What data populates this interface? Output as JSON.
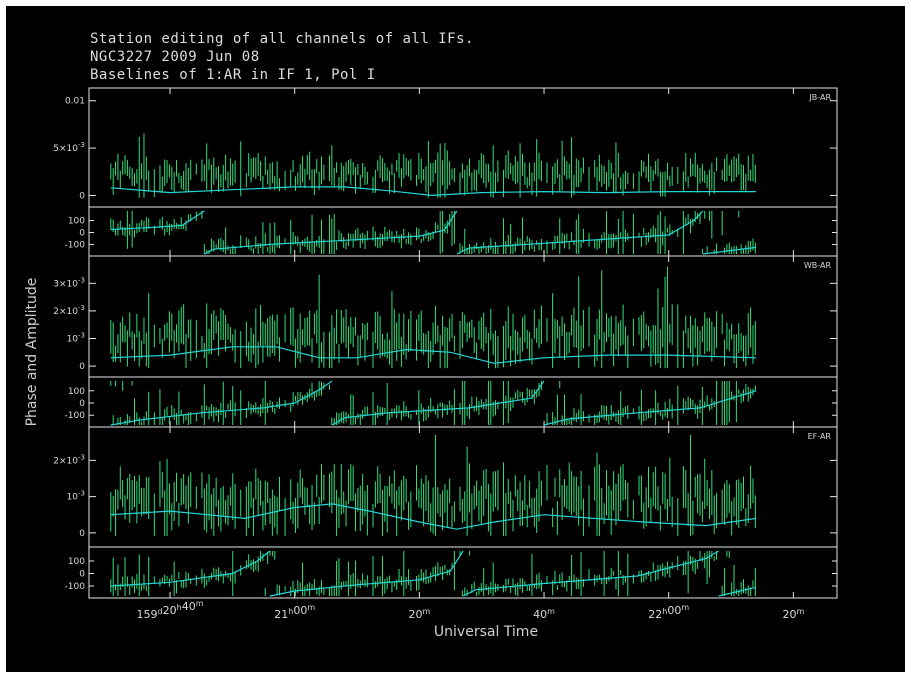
{
  "title_lines": [
    "Station editing of all channels of all IFs.",
    "NGC3227  2009 Jun 08",
    "Baselines of 1:AR in IF 1, Pol I"
  ],
  "colors": {
    "background": "#000000",
    "frame": "#e6e6e6",
    "data": "#2ee07a",
    "model": "#24d6d6",
    "text": "#d8d8d8"
  },
  "chart_data": {
    "type": "scatter",
    "xlabel": "Universal Time",
    "ylabel": "Phase and Amplitude",
    "x_unit": "minutes from 159d 20h 40m",
    "xlim": [
      -13,
      107
    ],
    "x_ticks": [
      {
        "t": 0,
        "label": "159d20h40m",
        "parts": [
          [
            "159",
            "d"
          ],
          [
            "20",
            "h"
          ],
          [
            "40",
            "m"
          ]
        ]
      },
      {
        "t": 20,
        "label": "21h00m",
        "parts": [
          [
            "21",
            "h"
          ],
          [
            "00",
            "m"
          ]
        ]
      },
      {
        "t": 40,
        "label": "20m",
        "parts": [
          [
            "20",
            "m"
          ]
        ]
      },
      {
        "t": 60,
        "label": "40m",
        "parts": [
          [
            "40",
            "m"
          ]
        ]
      },
      {
        "t": 80,
        "label": "22h00m",
        "parts": [
          [
            "22",
            "h"
          ],
          [
            "00",
            "m"
          ]
        ]
      },
      {
        "t": 100,
        "label": "20m",
        "parts": [
          [
            "20",
            "m"
          ]
        ]
      }
    ],
    "data_xrange": [
      -9.5,
      94
    ],
    "panels": [
      {
        "baseline": "JB-AR",
        "amp_ylim": [
          -0.0008,
          0.0105
        ],
        "amp_ticks": [
          {
            "v": 0,
            "label": "0"
          },
          {
            "v": 0.005,
            "label": "5×10-3",
            "mant": "5",
            "exp": "-3"
          },
          {
            "v": 0.01,
            "label": "0.01"
          }
        ],
        "amp_mean": 0.0022,
        "amp_spread": 0.0011,
        "amp_model": [
          [
            -9.5,
            0.0008
          ],
          [
            0,
            0.0003
          ],
          [
            10,
            0.0006
          ],
          [
            20,
            0.0009
          ],
          [
            28,
            0.0009
          ],
          [
            35,
            0.0005
          ],
          [
            42,
            0.0
          ],
          [
            50,
            0.0003
          ],
          [
            60,
            0.0004
          ],
          [
            70,
            0.0003
          ],
          [
            80,
            0.0004
          ],
          [
            94,
            0.0004
          ]
        ],
        "phase_ylim": [
          -180,
          180
        ],
        "phase_ticks": [
          100,
          0,
          -100
        ],
        "phase_model": [
          [
            -9.5,
            25
          ],
          [
            -2,
            45
          ],
          [
            2,
            60
          ],
          [
            4,
            130
          ],
          [
            5.5,
            180
          ],
          [
            null,
            null
          ],
          [
            5.5,
            -180
          ],
          [
            7,
            -140
          ],
          [
            16,
            -100
          ],
          [
            30,
            -60
          ],
          [
            40,
            -30
          ],
          [
            44,
            20
          ],
          [
            46,
            180
          ],
          [
            null,
            null
          ],
          [
            46,
            -180
          ],
          [
            48,
            -130
          ],
          [
            60,
            -90
          ],
          [
            80,
            -20
          ],
          [
            84,
            100
          ],
          [
            85.5,
            180
          ],
          [
            null,
            null
          ],
          [
            85.5,
            -180
          ],
          [
            94,
            -125
          ]
        ]
      },
      {
        "baseline": "WB-AR",
        "amp_ylim": [
          -0.00025,
          0.0037
        ],
        "amp_ticks": [
          {
            "v": 0,
            "label": "0"
          },
          {
            "v": 0.001,
            "label": "10-3",
            "mant": "",
            "exp": "-3"
          },
          {
            "v": 0.002,
            "label": "2×10-3",
            "mant": "2",
            "exp": "-3"
          },
          {
            "v": 0.003,
            "label": "3×10-3",
            "mant": "3",
            "exp": "-3"
          }
        ],
        "amp_mean": 0.001,
        "amp_spread": 0.00055,
        "amp_model": [
          [
            -9.5,
            0.0003
          ],
          [
            0,
            0.0004
          ],
          [
            10,
            0.0007
          ],
          [
            17,
            0.0007
          ],
          [
            24,
            0.0003
          ],
          [
            30,
            0.0003
          ],
          [
            38,
            0.0006
          ],
          [
            45,
            0.0005
          ],
          [
            52,
            0.0001
          ],
          [
            60,
            0.0003
          ],
          [
            70,
            0.0004
          ],
          [
            80,
            0.0004
          ],
          [
            94,
            0.0003
          ]
        ],
        "phase_ylim": [
          -180,
          180
        ],
        "phase_ticks": [
          100,
          0,
          -100
        ],
        "phase_model": [
          [
            -9.5,
            -180
          ],
          [
            -5,
            -140
          ],
          [
            5,
            -80
          ],
          [
            15,
            -40
          ],
          [
            20,
            0
          ],
          [
            24,
            110
          ],
          [
            26,
            180
          ],
          [
            null,
            null
          ],
          [
            26,
            -180
          ],
          [
            28,
            -120
          ],
          [
            35,
            -80
          ],
          [
            48,
            -40
          ],
          [
            58,
            40
          ],
          [
            60,
            180
          ],
          [
            null,
            null
          ],
          [
            60,
            -180
          ],
          [
            64,
            -130
          ],
          [
            75,
            -80
          ],
          [
            85,
            -40
          ],
          [
            94,
            100
          ]
        ]
      },
      {
        "baseline": "EF-AR",
        "amp_ylim": [
          -0.00028,
          0.0027
        ],
        "amp_ticks": [
          {
            "v": 0,
            "label": "0"
          },
          {
            "v": 0.001,
            "label": "10-3",
            "mant": "",
            "exp": "-3"
          },
          {
            "v": 0.002,
            "label": "2×10-3",
            "mant": "2",
            "exp": "-3"
          }
        ],
        "amp_mean": 0.0009,
        "amp_spread": 0.0005,
        "amp_model": [
          [
            -9.5,
            0.0005
          ],
          [
            0,
            0.0006
          ],
          [
            6,
            0.0005
          ],
          [
            12,
            0.0004
          ],
          [
            20,
            0.0007
          ],
          [
            26,
            0.0008
          ],
          [
            32,
            0.0006
          ],
          [
            40,
            0.0003
          ],
          [
            46,
            0.0001
          ],
          [
            52,
            0.0003
          ],
          [
            60,
            0.0005
          ],
          [
            68,
            0.0004
          ],
          [
            76,
            0.0003
          ],
          [
            86,
            0.0002
          ],
          [
            94,
            0.0004
          ]
        ],
        "phase_ylim": [
          -180,
          180
        ],
        "phase_ticks": [
          100,
          0,
          -100
        ],
        "phase_model": [
          [
            -9.5,
            -100
          ],
          [
            0,
            -70
          ],
          [
            10,
            0
          ],
          [
            14,
            100
          ],
          [
            16,
            180
          ],
          [
            null,
            null
          ],
          [
            16,
            -180
          ],
          [
            20,
            -140
          ],
          [
            30,
            -90
          ],
          [
            40,
            -50
          ],
          [
            45,
            20
          ],
          [
            47,
            180
          ],
          [
            null,
            null
          ],
          [
            47,
            -180
          ],
          [
            49,
            -130
          ],
          [
            60,
            -80
          ],
          [
            75,
            -20
          ],
          [
            86,
            120
          ],
          [
            88,
            180
          ],
          [
            null,
            null
          ],
          [
            88,
            -180
          ],
          [
            94,
            -110
          ]
        ]
      }
    ]
  }
}
